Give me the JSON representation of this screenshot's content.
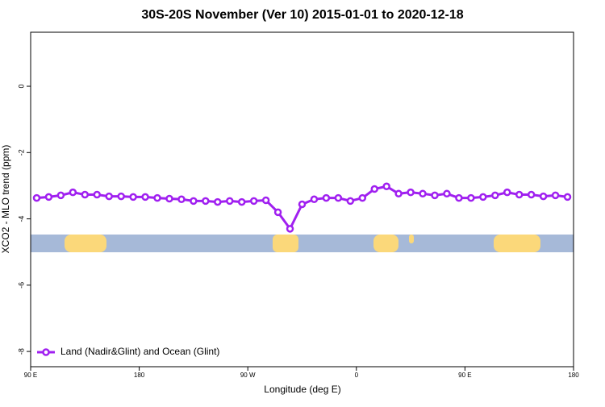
{
  "chart_data": {
    "type": "line",
    "title": "30S-20S November (Ver 10)   2015-01-01 to 2020-12-18",
    "x_label": "Longitude (deg E)",
    "y_label": "XCO2 - MLO trend (ppm)",
    "x": [
      95,
      105,
      115,
      125,
      135,
      145,
      155,
      165,
      175,
      185,
      195,
      205,
      215,
      225,
      235,
      245,
      255,
      265,
      275,
      285,
      295,
      305,
      315,
      325,
      335,
      345,
      355,
      365,
      375,
      385,
      395,
      405,
      415,
      425,
      435,
      445,
      455,
      465,
      475,
      485,
      495,
      505,
      515,
      525,
      535
    ],
    "series": [
      {
        "name": "Land (Nadir&Glint) and Ocean (Glint)",
        "color": "#a020f0",
        "values": [
          -3.37,
          -3.34,
          -3.29,
          -3.2,
          -3.27,
          -3.27,
          -3.32,
          -3.32,
          -3.34,
          -3.34,
          -3.37,
          -3.39,
          -3.41,
          -3.46,
          -3.46,
          -3.49,
          -3.46,
          -3.49,
          -3.46,
          -3.44,
          -3.8,
          -4.3,
          -3.56,
          -3.41,
          -3.37,
          -3.37,
          -3.46,
          -3.37,
          -3.1,
          -3.02,
          -3.24,
          -3.2,
          -3.24,
          -3.29,
          -3.24,
          -3.37,
          -3.37,
          -3.34,
          -3.29,
          -3.2,
          -3.27,
          -3.27,
          -3.32,
          -3.29,
          -3.34
        ]
      }
    ],
    "xlim": [
      90,
      540
    ],
    "xticks": [
      {
        "value": 90,
        "label": "90 E"
      },
      180,
      {
        "value": 270,
        "label": "90 W"
      },
      {
        "value": 360,
        "label": "0"
      },
      {
        "value": 450,
        "label": "90 E"
      },
      {
        "value": 540,
        "label": "180"
      }
    ],
    "ylim": [
      -8.46,
      1.63
    ],
    "yticks": [
      0,
      -2,
      -4,
      -6,
      -8
    ],
    "legend": "bottom-left",
    "grid": false
  }
}
